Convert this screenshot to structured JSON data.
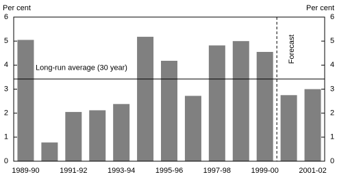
{
  "chart_data": {
    "type": "bar",
    "categories": [
      "1989-90",
      null,
      "1991-92",
      null,
      "1993-94",
      null,
      "1995-96",
      null,
      "1997-98",
      null,
      "1999-00",
      null,
      "2001-02"
    ],
    "values": [
      5.05,
      0.78,
      2.05,
      2.12,
      2.38,
      5.18,
      4.18,
      2.72,
      4.82,
      5.0,
      4.55,
      2.75,
      3.0
    ],
    "color": "#808080",
    "y_label": "Per cent",
    "y2_label": "Per cent",
    "ylim": [
      0,
      6
    ],
    "yticks": [
      0,
      1,
      2,
      3,
      4,
      5,
      6
    ],
    "y2lim": [
      0,
      6
    ],
    "y2ticks": [
      0,
      1,
      2,
      3,
      4,
      5,
      6
    ],
    "reference_line": {
      "label": "Long-run average (30 year)",
      "value": 3.42
    },
    "forecast": {
      "label": "Forecast"
    }
  }
}
